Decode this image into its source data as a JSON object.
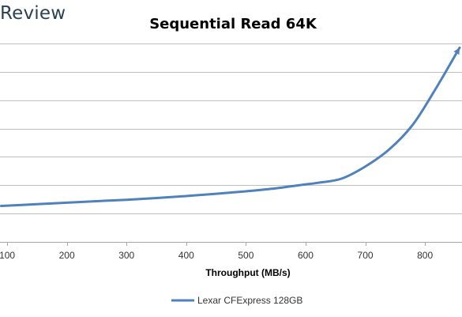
{
  "brand": {
    "text": "Review"
  },
  "chart_data": {
    "type": "line",
    "title": "Sequential Read 64K",
    "xlabel": "Throughput (MB/s)",
    "ylabel": "",
    "xlim": [
      88,
      862
    ],
    "ylim": [
      0,
      8
    ],
    "x_ticks": [
      100,
      200,
      300,
      400,
      500,
      600,
      700,
      800
    ],
    "y_grid_count": 8,
    "grid": true,
    "legend": "bottom",
    "series": [
      {
        "name": "Lexar CFExpress 128GB",
        "color": "#4f81bd",
        "points": [
          [
            90,
            1.45
          ],
          [
            150,
            1.52
          ],
          [
            200,
            1.58
          ],
          [
            250,
            1.64
          ],
          [
            300,
            1.7
          ],
          [
            350,
            1.77
          ],
          [
            400,
            1.85
          ],
          [
            450,
            1.94
          ],
          [
            500,
            2.04
          ],
          [
            550,
            2.16
          ],
          [
            590,
            2.29
          ],
          [
            620,
            2.38
          ],
          [
            660,
            2.55
          ],
          [
            700,
            3.04
          ],
          [
            740,
            3.73
          ],
          [
            780,
            4.74
          ],
          [
            820,
            6.26
          ],
          [
            858,
            7.83
          ]
        ]
      }
    ]
  }
}
